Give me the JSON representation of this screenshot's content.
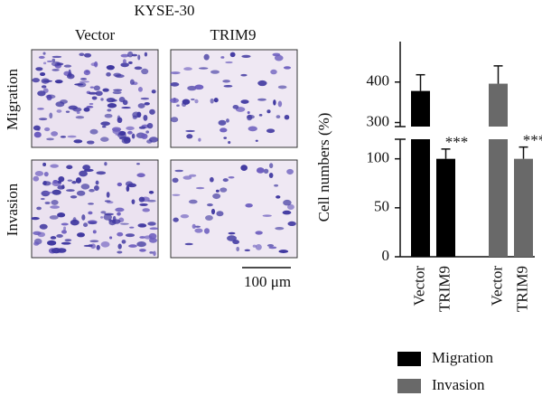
{
  "figure": {
    "title": "KYSE-30",
    "columns": [
      "Vector",
      "TRIM9"
    ],
    "rows": [
      "Migration",
      "Invasion"
    ],
    "scale_bar": "100 μm"
  },
  "chart_data": {
    "type": "bar",
    "y_label": "Cell numbers (%)",
    "categories": [
      "Vector",
      "TRIM9"
    ],
    "series": [
      {
        "name": "Migration",
        "color": "#000000",
        "values": [
          378,
          100
        ],
        "errors": [
          40,
          10
        ],
        "annotations": [
          null,
          "***"
        ]
      },
      {
        "name": "Invasion",
        "color": "#696969",
        "values": [
          396,
          100
        ],
        "errors": [
          44,
          12
        ],
        "annotations": [
          null,
          "***"
        ]
      }
    ],
    "ylim": [
      0,
      500
    ],
    "axis_break": [
      120,
      290
    ],
    "yticks": [
      0,
      50,
      100,
      300,
      400
    ]
  }
}
